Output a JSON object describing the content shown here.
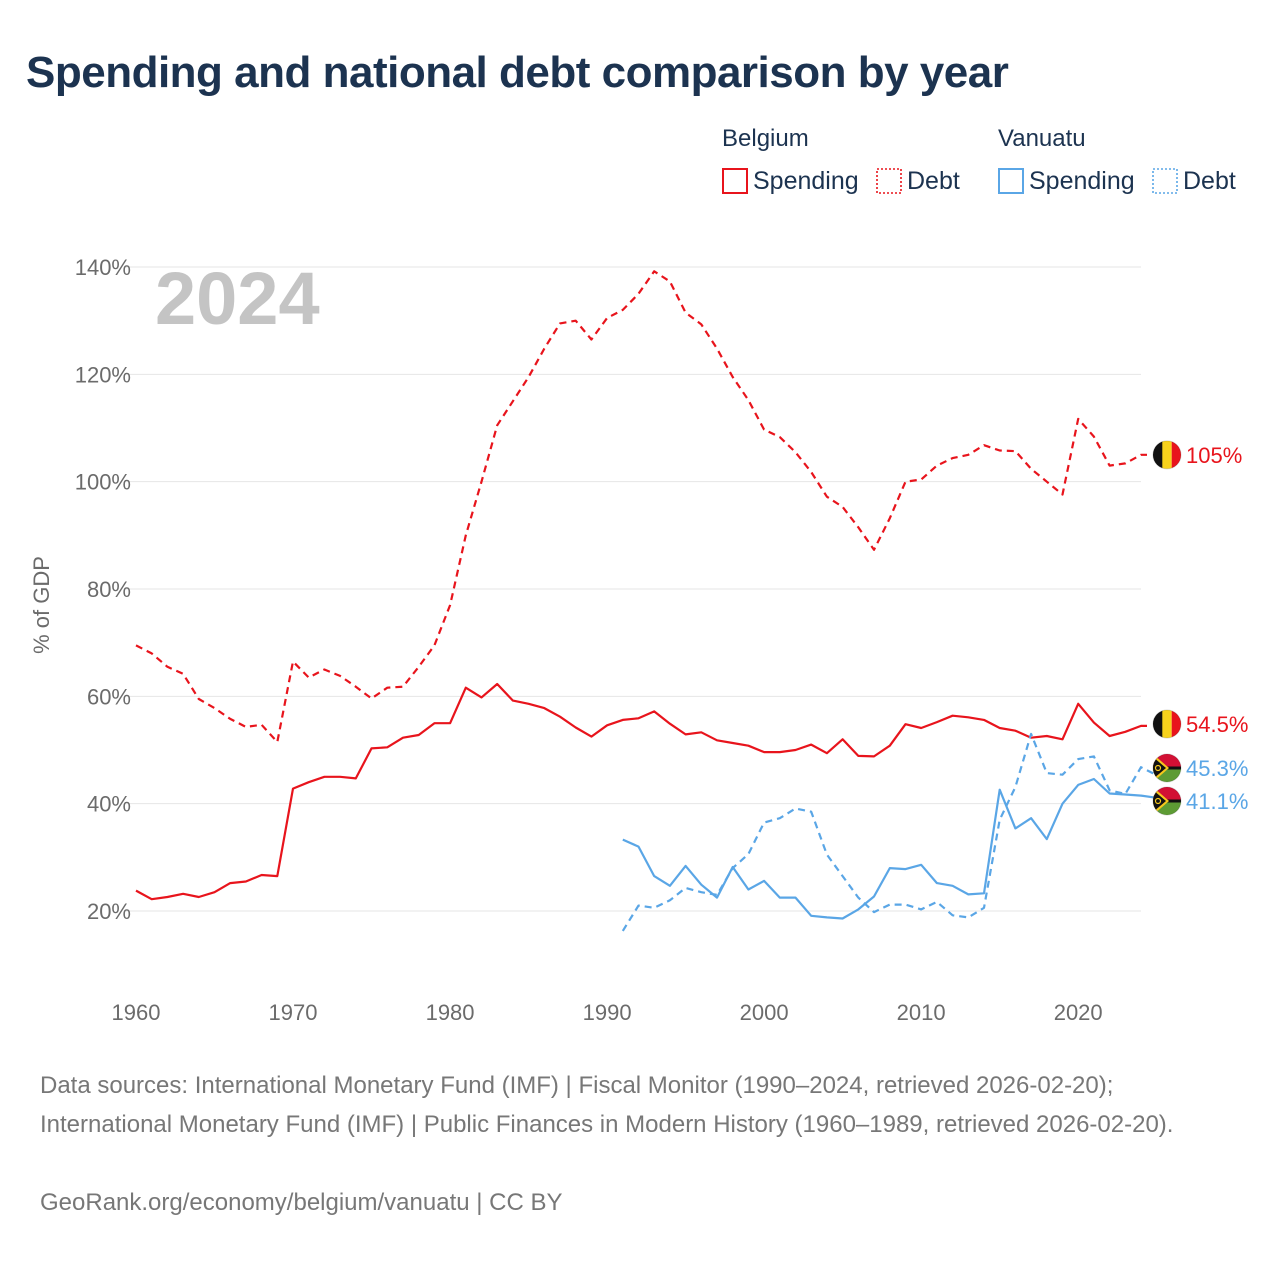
{
  "title": "Spending and national debt comparison by year",
  "year_watermark": "2024",
  "colors": {
    "belgium": "#e8141c",
    "vanuatu": "#5aa6e6",
    "title": "#1c3350",
    "grid": "#e6e6e6",
    "watermark": "#c4c4c4"
  },
  "legend": {
    "groups": [
      {
        "title": "Belgium",
        "color": "#e8141c",
        "items": [
          {
            "label": "Spending",
            "style": "solid"
          },
          {
            "label": "Debt",
            "style": "dotted"
          }
        ]
      },
      {
        "title": "Vanuatu",
        "color": "#5aa6e6",
        "items": [
          {
            "label": "Spending",
            "style": "solid"
          },
          {
            "label": "Debt",
            "style": "dotted"
          }
        ]
      }
    ]
  },
  "footer": {
    "sources": "Data sources: International Monetary Fund (IMF) | Fiscal Monitor (1990–2024, retrieved 2026-02-20); International Monetary Fund (IMF) | Public Finances in Modern History (1960–1989, retrieved 2026-02-20).",
    "credit": "GeoRank.org/economy/belgium/vanuatu | CC BY"
  },
  "chart_data": {
    "type": "line",
    "title": "Spending and national debt comparison by year",
    "xlabel": "",
    "ylabel": "% of GDP",
    "xlim": [
      1960,
      2024
    ],
    "ylim": [
      8,
      146
    ],
    "x_ticks": [
      1960,
      1970,
      1980,
      1990,
      2000,
      2010,
      2020
    ],
    "x_tick_labels": [
      "1960",
      "1970",
      "1980",
      "1990",
      "2000",
      "2010",
      "2020"
    ],
    "y_ticks": [
      20,
      40,
      60,
      80,
      100,
      120,
      140
    ],
    "y_tick_labels": [
      "20%",
      "40%",
      "60%",
      "80%",
      "100%",
      "120%",
      "140%"
    ],
    "grid": true,
    "series": [
      {
        "name": "Belgium Debt",
        "country": "Belgium",
        "metric": "Debt",
        "color": "#e8141c",
        "style": "dashed",
        "start_year": 1960,
        "end_label": "105%",
        "end_value": 105,
        "values": [
          69.5,
          68,
          65.5,
          64.2,
          59.5,
          57.8,
          55.8,
          54.3,
          54.7,
          51.5,
          66.5,
          63.5,
          65,
          63.8,
          61.8,
          59.6,
          61.6,
          61.8,
          65.5,
          69.5,
          77,
          90,
          100,
          110.5,
          115,
          119.5,
          124.8,
          129.5,
          130,
          126.5,
          130.5,
          132,
          135,
          139.2,
          137.3,
          131.5,
          129.3,
          124.8,
          119.5,
          115.2,
          109.7,
          108.3,
          105.5,
          101.8,
          97.2,
          95.3,
          91.5,
          87.3,
          93.2,
          100,
          100.4,
          103,
          104.4,
          105,
          106.8,
          105.8,
          105.7,
          102.4,
          100,
          97.6,
          111.7,
          108.4,
          103,
          103.4,
          105
        ]
      },
      {
        "name": "Belgium Spending",
        "country": "Belgium",
        "metric": "Spending",
        "color": "#e8141c",
        "style": "solid",
        "start_year": 1960,
        "end_label": "54.5%",
        "end_value": 54.5,
        "values": [
          23.8,
          22.2,
          22.6,
          23.2,
          22.6,
          23.5,
          25.2,
          25.5,
          26.7,
          26.5,
          42.8,
          44,
          45,
          45,
          44.7,
          50.3,
          50.5,
          52.3,
          52.8,
          55,
          55,
          61.6,
          59.8,
          62.3,
          59.2,
          58.6,
          57.8,
          56.2,
          54.2,
          52.5,
          54.6,
          55.6,
          55.9,
          57.2,
          54.9,
          52.9,
          53.3,
          51.8,
          51.3,
          50.8,
          49.6,
          49.6,
          50,
          51,
          49.4,
          52,
          48.9,
          48.8,
          50.8,
          54.8,
          54.1,
          55.2,
          56.4,
          56.1,
          55.6,
          54.1,
          53.6,
          52.3,
          52.6,
          52,
          58.6,
          55.1,
          52.6,
          53.4,
          54.5
        ]
      },
      {
        "name": "Vanuatu Debt",
        "country": "Vanuatu",
        "metric": "Debt",
        "color": "#5aa6e6",
        "style": "dashed",
        "start_year": 1991,
        "end_label": "45.3%",
        "end_value": 45.3,
        "values": [
          16.3,
          21,
          20.6,
          22,
          24.3,
          23.5,
          23,
          28,
          30.6,
          36.5,
          37.3,
          39.1,
          38.5,
          30.5,
          26.5,
          22.5,
          19.8,
          21.2,
          21.2,
          20.3,
          21.7,
          19.2,
          18.8,
          20.6,
          37,
          43.1,
          53,
          45.7,
          45.4,
          48.3,
          48.8,
          42.5,
          41.8,
          46.8,
          45.3
        ]
      },
      {
        "name": "Vanuatu Spending",
        "country": "Vanuatu",
        "metric": "Spending",
        "color": "#5aa6e6",
        "style": "solid",
        "start_year": 1991,
        "end_label": "41.1%",
        "end_value": 41.1,
        "values": [
          33.3,
          32,
          26.5,
          24.7,
          28.4,
          24.9,
          22.5,
          28.2,
          24,
          25.6,
          22.5,
          22.5,
          19.1,
          18.8,
          18.6,
          20.3,
          22.7,
          28,
          27.8,
          28.6,
          25.2,
          24.7,
          23.1,
          23.3,
          42.6,
          35.4,
          37.3,
          33.4,
          40,
          43.5,
          44.6,
          41.9,
          41.7,
          41.5,
          41.1
        ]
      }
    ]
  }
}
